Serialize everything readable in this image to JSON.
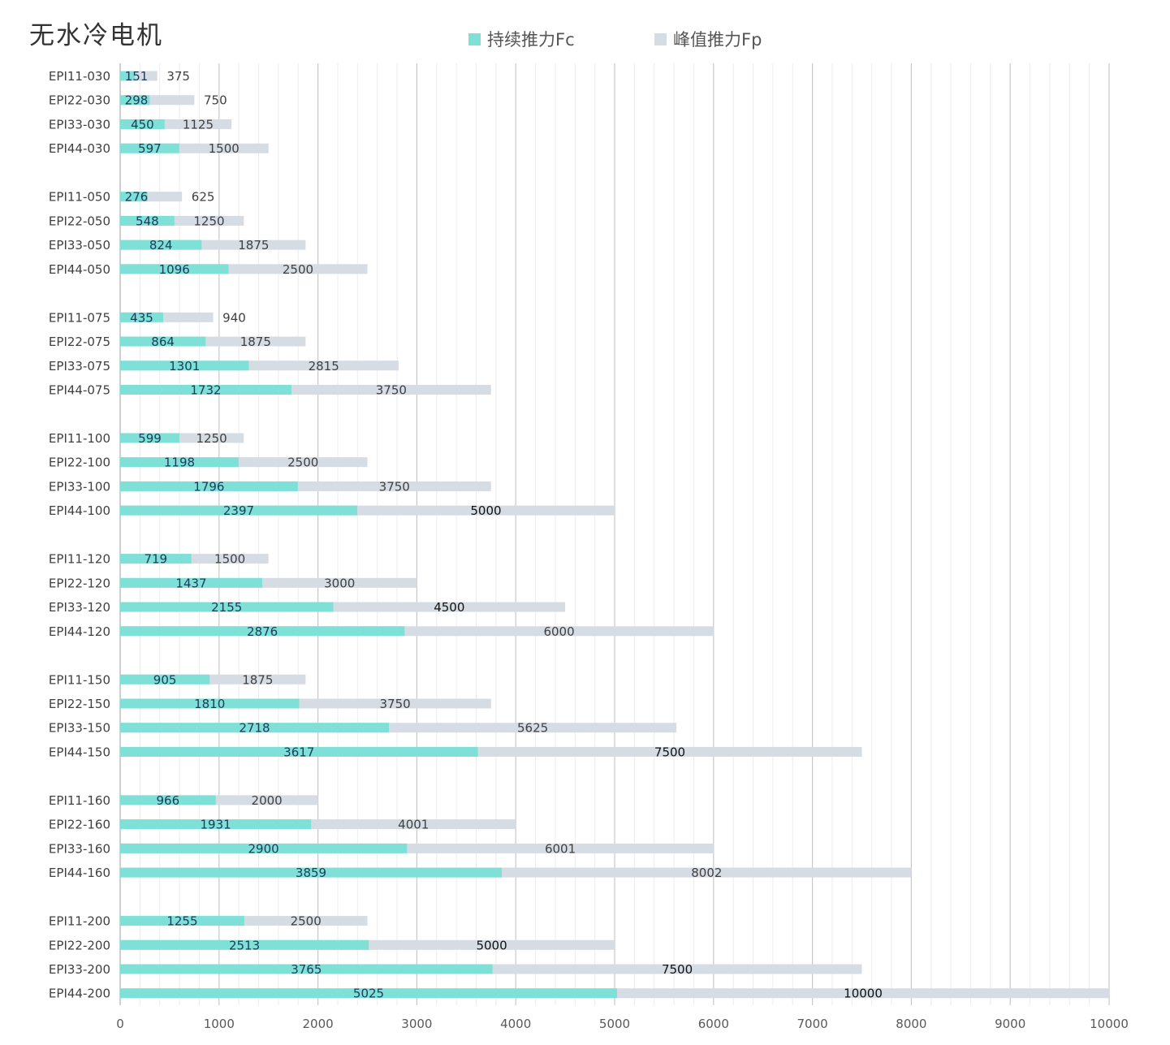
{
  "colors": {
    "continuous": "#7fe0d7",
    "peak": "#d6dce4",
    "grid_major": "#c8c8c8",
    "grid_minor": "#ececec",
    "axis": "#bfbfbf",
    "text": "#404040",
    "label_dark": "#1a3c5a"
  },
  "chart_data": {
    "type": "bar",
    "orientation": "horizontal",
    "title": "无水冷电机",
    "xlim": [
      0,
      10000
    ],
    "x_ticks": [
      0,
      1000,
      2000,
      3000,
      4000,
      5000,
      6000,
      7000,
      8000,
      9000,
      10000
    ],
    "grid": true,
    "legend": {
      "position": "top-center",
      "entries": [
        "持续推力Fc",
        "峰值推力Fp"
      ]
    },
    "categories": [
      "EPI11-030",
      "EPI22-030",
      "EPI33-030",
      "EPI44-030",
      "",
      "EPI11-050",
      "EPI22-050",
      "EPI33-050",
      "EPI44-050",
      "",
      "EPI11-075",
      "EPI22-075",
      "EPI33-075",
      "EPI44-075",
      "",
      "EPI11-100",
      "EPI22-100",
      "EPI33-100",
      "EPI44-100",
      "",
      "EPI11-120",
      "EPI22-120",
      "EPI33-120",
      "EPI44-120",
      "",
      "EPI11-150",
      "EPI22-150",
      "EPI33-150",
      "EPI44-150",
      "",
      "EPI11-160",
      "EPI22-160",
      "EPI33-160",
      "EPI44-160",
      "",
      "EPI11-200",
      "EPI22-200",
      "EPI33-200",
      "EPI44-200"
    ],
    "series": [
      {
        "name": "持续推力Fc",
        "values": [
          151,
          298,
          450,
          597,
          null,
          276,
          548,
          824,
          1096,
          null,
          435,
          864,
          1301,
          1732,
          null,
          599,
          1198,
          1796,
          2397,
          null,
          719,
          1437,
          2155,
          2876,
          null,
          905,
          1810,
          2718,
          3617,
          null,
          966,
          1931,
          2900,
          3859,
          null,
          1255,
          2513,
          3765,
          5025
        ]
      },
      {
        "name": "峰值推力Fp",
        "values": [
          375,
          750,
          1125,
          1500,
          null,
          625,
          1250,
          1875,
          2500,
          null,
          940,
          1875,
          2815,
          3750,
          null,
          1250,
          2500,
          3750,
          5000,
          null,
          1500,
          3000,
          4500,
          6000,
          null,
          1875,
          3750,
          5625,
          7500,
          null,
          2000,
          4001,
          6001,
          8002,
          null,
          2500,
          5000,
          7500,
          10000
        ]
      }
    ]
  }
}
